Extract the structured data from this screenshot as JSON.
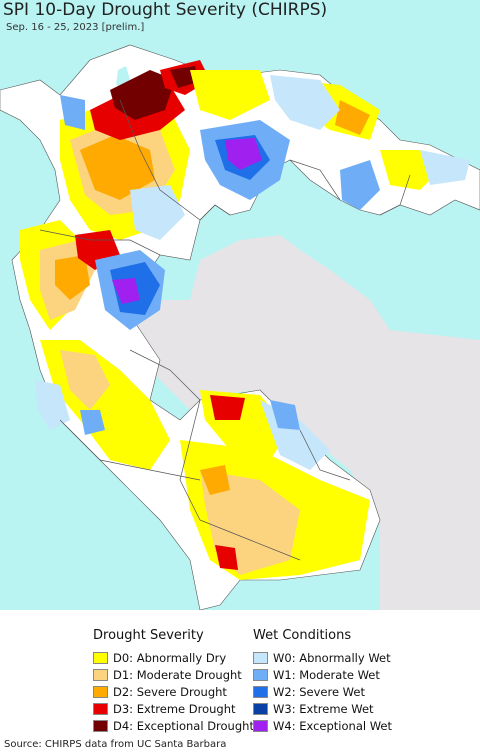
{
  "title": "SPI 10-Day Drought Severity (CHIRPS)",
  "subtitle": "Sep. 16 - 25, 2023 [prelim.]",
  "colors": {
    "ocean": "#b9f3f2",
    "land_base": "#ffffff",
    "outside_land": "#e7e4e8",
    "border": "#555555",
    "D0": "#ffff00",
    "D1": "#fcd37f",
    "D2": "#ffaa00",
    "D3": "#e60000",
    "D4": "#730000",
    "W0": "#c6e6fb",
    "W1": "#6faef7",
    "W2": "#1f6fe8",
    "W3": "#0a3fa6",
    "W4": "#a020f0"
  },
  "legend": {
    "drought": {
      "heading": "Drought Severity",
      "items": [
        {
          "code": "D0",
          "label": "D0: Abnormally Dry",
          "color": "#ffff00"
        },
        {
          "code": "D1",
          "label": "D1: Moderate Drought",
          "color": "#fcd37f"
        },
        {
          "code": "D2",
          "label": "D2: Severe Drought",
          "color": "#ffaa00"
        },
        {
          "code": "D3",
          "label": "D3: Extreme Drought",
          "color": "#e60000"
        },
        {
          "code": "D4",
          "label": "D4: Exceptional Drought",
          "color": "#730000"
        }
      ]
    },
    "wet": {
      "heading": "Wet Conditions",
      "items": [
        {
          "code": "W0",
          "label": "W0: Abnormally Wet",
          "color": "#c6e6fb"
        },
        {
          "code": "W1",
          "label": "W1: Moderate Wet",
          "color": "#6faef7"
        },
        {
          "code": "W2",
          "label": "W2: Severe Wet",
          "color": "#1f6fe8"
        },
        {
          "code": "W3",
          "label": "W3: Extreme Wet",
          "color": "#0a3fa6"
        },
        {
          "code": "W4",
          "label": "W4: Exceptional Wet",
          "color": "#a020f0"
        }
      ]
    }
  },
  "source": "Source: CHIRPS data from UC Santa Barbara"
}
